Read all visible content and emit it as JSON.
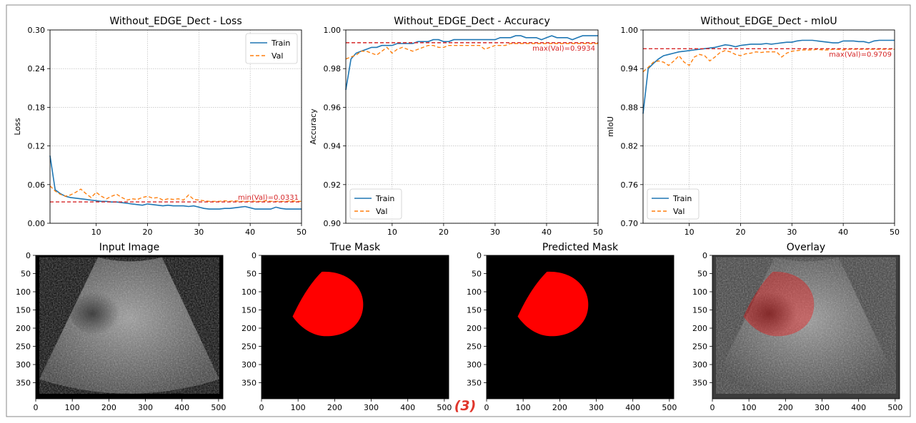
{
  "figure_label": "(3)",
  "line_plots": [
    {
      "title": "Without_EDGE_Dect - Loss",
      "ylabel": "Loss",
      "ylim": [
        0,
        0.3
      ],
      "yticks": [
        "0.00",
        "0.06",
        "0.12",
        "0.18",
        "0.24",
        "0.30"
      ],
      "xticks": [
        "10",
        "20",
        "30",
        "40",
        "50"
      ],
      "legend": {
        "train": "Train",
        "val": "Val",
        "placement": "top-right"
      },
      "ref_value": 0.0331,
      "ref_label": "min(Val)=0.0331"
    },
    {
      "title": "Without_EDGE_Dect - Accuracy",
      "ylabel": "Accuracy",
      "ylim": [
        0.9,
        1.0
      ],
      "yticks": [
        "0.90",
        "0.92",
        "0.94",
        "0.96",
        "0.98",
        "1.00"
      ],
      "xticks": [
        "10",
        "20",
        "30",
        "40",
        "50"
      ],
      "legend": {
        "train": "Train",
        "val": "Val",
        "placement": "bottom-left"
      },
      "ref_value": 0.9934,
      "ref_label": "max(Val)=0.9934"
    },
    {
      "title": "Without_EDGE_Dect - mIoU",
      "ylabel": "mIoU",
      "ylim": [
        0.7,
        1.0
      ],
      "yticks": [
        "0.70",
        "0.76",
        "0.82",
        "0.88",
        "0.94",
        "1.00"
      ],
      "xticks": [
        "10",
        "20",
        "30",
        "40",
        "50"
      ],
      "legend": {
        "train": "Train",
        "val": "Val",
        "placement": "bottom-left"
      },
      "ref_value": 0.9709,
      "ref_label": "max(Val)=0.9709"
    }
  ],
  "image_panels": [
    {
      "title": "Input Image",
      "kind": "ultrasound"
    },
    {
      "title": "True Mask",
      "kind": "mask"
    },
    {
      "title": "Predicted Mask",
      "kind": "mask"
    },
    {
      "title": "Overlay",
      "kind": "overlay"
    }
  ],
  "image_axes": {
    "xticks": [
      "0",
      "100",
      "200",
      "300",
      "400",
      "500"
    ],
    "yticks": [
      "0",
      "50",
      "100",
      "150",
      "200",
      "250",
      "300",
      "350"
    ]
  },
  "colors": {
    "train": "#1f77b4",
    "val": "#ff7f0e",
    "ref": "#d62728",
    "mask": "#ff0000"
  },
  "chart_data": [
    {
      "type": "line",
      "title": "Without_EDGE_Dect - Loss",
      "ylabel": "Loss",
      "xlim": [
        1,
        50
      ],
      "ylim": [
        0,
        0.3
      ],
      "grid": true,
      "x": [
        1,
        2,
        3,
        4,
        5,
        6,
        7,
        8,
        9,
        10,
        11,
        12,
        13,
        14,
        15,
        16,
        17,
        18,
        19,
        20,
        21,
        22,
        23,
        24,
        25,
        26,
        27,
        28,
        29,
        30,
        31,
        32,
        33,
        34,
        35,
        36,
        37,
        38,
        39,
        40,
        41,
        42,
        43,
        44,
        45,
        46,
        47,
        48,
        49,
        50
      ],
      "series": [
        {
          "name": "Train",
          "values": [
            0.105,
            0.052,
            0.046,
            0.042,
            0.04,
            0.039,
            0.038,
            0.037,
            0.036,
            0.035,
            0.034,
            0.034,
            0.033,
            0.033,
            0.032,
            0.031,
            0.03,
            0.029,
            0.028,
            0.03,
            0.029,
            0.028,
            0.027,
            0.028,
            0.027,
            0.027,
            0.027,
            0.026,
            0.027,
            0.025,
            0.023,
            0.022,
            0.022,
            0.022,
            0.023,
            0.023,
            0.024,
            0.025,
            0.026,
            0.024,
            0.022,
            0.022,
            0.022,
            0.022,
            0.025,
            0.023,
            0.022,
            0.022,
            0.022,
            0.022
          ]
        },
        {
          "name": "Val",
          "values": [
            0.058,
            0.05,
            0.045,
            0.042,
            0.044,
            0.048,
            0.053,
            0.046,
            0.04,
            0.048,
            0.042,
            0.038,
            0.042,
            0.045,
            0.04,
            0.036,
            0.038,
            0.037,
            0.04,
            0.042,
            0.039,
            0.04,
            0.036,
            0.038,
            0.037,
            0.038,
            0.036,
            0.044,
            0.037,
            0.036,
            0.035,
            0.034,
            0.034,
            0.034,
            0.035,
            0.034,
            0.035,
            0.034,
            0.034,
            0.034,
            0.034,
            0.034,
            0.035,
            0.034,
            0.034,
            0.034,
            0.034,
            0.035,
            0.034,
            0.034
          ]
        }
      ],
      "reference_line": {
        "value": 0.0331,
        "label": "min(Val)=0.0331"
      }
    },
    {
      "type": "line",
      "title": "Without_EDGE_Dect - Accuracy",
      "ylabel": "Accuracy",
      "xlim": [
        1,
        50
      ],
      "ylim": [
        0.9,
        1.0
      ],
      "grid": true,
      "x": [
        1,
        2,
        3,
        4,
        5,
        6,
        7,
        8,
        9,
        10,
        11,
        12,
        13,
        14,
        15,
        16,
        17,
        18,
        19,
        20,
        21,
        22,
        23,
        24,
        25,
        26,
        27,
        28,
        29,
        30,
        31,
        32,
        33,
        34,
        35,
        36,
        37,
        38,
        39,
        40,
        41,
        42,
        43,
        44,
        45,
        46,
        47,
        48,
        49,
        50
      ],
      "series": [
        {
          "name": "Train",
          "values": [
            0.969,
            0.985,
            0.988,
            0.989,
            0.99,
            0.991,
            0.991,
            0.992,
            0.992,
            0.992,
            0.993,
            0.993,
            0.993,
            0.993,
            0.994,
            0.994,
            0.994,
            0.995,
            0.995,
            0.994,
            0.994,
            0.995,
            0.995,
            0.995,
            0.995,
            0.995,
            0.995,
            0.995,
            0.995,
            0.995,
            0.996,
            0.996,
            0.996,
            0.997,
            0.997,
            0.996,
            0.996,
            0.996,
            0.995,
            0.996,
            0.997,
            0.996,
            0.996,
            0.996,
            0.995,
            0.996,
            0.997,
            0.997,
            0.997,
            0.997
          ]
        },
        {
          "name": "Val",
          "values": [
            0.985,
            0.986,
            0.987,
            0.989,
            0.989,
            0.988,
            0.987,
            0.989,
            0.991,
            0.988,
            0.99,
            0.991,
            0.99,
            0.989,
            0.99,
            0.991,
            0.992,
            0.992,
            0.991,
            0.991,
            0.992,
            0.992,
            0.992,
            0.992,
            0.992,
            0.992,
            0.992,
            0.99,
            0.991,
            0.992,
            0.992,
            0.992,
            0.993,
            0.993,
            0.993,
            0.993,
            0.993,
            0.993,
            0.993,
            0.993,
            0.993,
            0.993,
            0.993,
            0.993,
            0.993,
            0.993,
            0.993,
            0.993,
            0.993,
            0.993
          ]
        }
      ],
      "reference_line": {
        "value": 0.9934,
        "label": "max(Val)=0.9934"
      }
    },
    {
      "type": "line",
      "title": "Without_EDGE_Dect - mIoU",
      "ylabel": "mIoU",
      "xlim": [
        1,
        50
      ],
      "ylim": [
        0.7,
        1.0
      ],
      "grid": true,
      "x": [
        1,
        2,
        3,
        4,
        5,
        6,
        7,
        8,
        9,
        10,
        11,
        12,
        13,
        14,
        15,
        16,
        17,
        18,
        19,
        20,
        21,
        22,
        23,
        24,
        25,
        26,
        27,
        28,
        29,
        30,
        31,
        32,
        33,
        34,
        35,
        36,
        37,
        38,
        39,
        40,
        41,
        42,
        43,
        44,
        45,
        46,
        47,
        48,
        49,
        50
      ],
      "series": [
        {
          "name": "Train",
          "values": [
            0.87,
            0.94,
            0.948,
            0.955,
            0.96,
            0.962,
            0.964,
            0.966,
            0.967,
            0.968,
            0.969,
            0.97,
            0.971,
            0.972,
            0.973,
            0.975,
            0.977,
            0.976,
            0.974,
            0.976,
            0.977,
            0.978,
            0.978,
            0.978,
            0.979,
            0.978,
            0.979,
            0.98,
            0.981,
            0.981,
            0.983,
            0.984,
            0.984,
            0.984,
            0.983,
            0.982,
            0.981,
            0.98,
            0.98,
            0.983,
            0.983,
            0.983,
            0.982,
            0.982,
            0.98,
            0.983,
            0.984,
            0.984,
            0.984,
            0.984
          ]
        },
        {
          "name": "Val",
          "values": [
            0.935,
            0.942,
            0.95,
            0.952,
            0.95,
            0.945,
            0.952,
            0.96,
            0.95,
            0.945,
            0.958,
            0.962,
            0.96,
            0.952,
            0.958,
            0.965,
            0.968,
            0.966,
            0.962,
            0.96,
            0.963,
            0.964,
            0.966,
            0.965,
            0.966,
            0.966,
            0.966,
            0.958,
            0.964,
            0.967,
            0.968,
            0.969,
            0.969,
            0.969,
            0.97,
            0.969,
            0.969,
            0.97,
            0.97,
            0.969,
            0.97,
            0.97,
            0.97,
            0.97,
            0.97,
            0.97,
            0.97,
            0.97,
            0.97,
            0.97
          ]
        }
      ],
      "reference_line": {
        "value": 0.9709,
        "label": "max(Val)=0.9709"
      }
    }
  ]
}
